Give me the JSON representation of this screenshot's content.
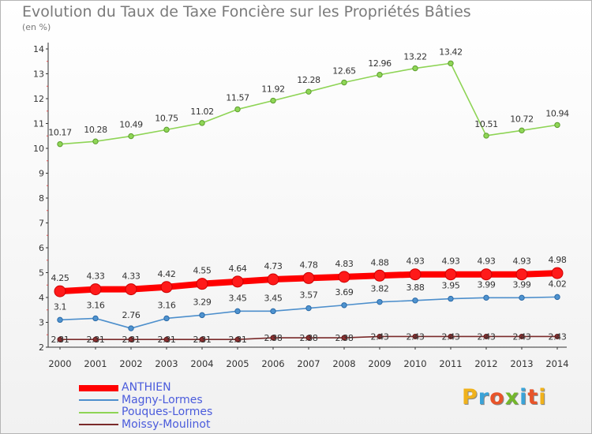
{
  "title": "Evolution du Taux de Taxe Foncière sur les Propriétés Bâties",
  "subtitle": "(en %)",
  "brand": {
    "letters": [
      "P",
      "r",
      "o",
      "x",
      "i",
      "t",
      "i"
    ],
    "colors": [
      "#f0b21c",
      "#3aa3d8",
      "#e8542a",
      "#73b72b",
      "#3aa3d8",
      "#e8542a",
      "#f0b21c"
    ]
  },
  "chart_data": {
    "type": "line",
    "title": "Evolution du Taux de Taxe Foncière sur les Propriétés Bâties",
    "ylabel": "(en %)",
    "xlabel": "",
    "x": [
      "2000",
      "2001",
      "2002",
      "2003",
      "2004",
      "2005",
      "2006",
      "2007",
      "2008",
      "2009",
      "2010",
      "2011",
      "2012",
      "2013",
      "2014"
    ],
    "ylim": [
      2,
      14
    ],
    "yticks": [
      "2",
      "3",
      "4",
      "5",
      "6",
      "7",
      "8",
      "9",
      "10",
      "11",
      "12",
      "13",
      "14"
    ],
    "grid": false,
    "legend_position": "bottom-left",
    "series": [
      {
        "name": "ANTHIEN",
        "color": "#ff0000",
        "values": [
          4.25,
          4.33,
          4.33,
          4.42,
          4.55,
          4.64,
          4.73,
          4.78,
          4.83,
          4.88,
          4.93,
          4.93,
          4.93,
          4.93,
          4.98
        ],
        "labels": [
          "4.25",
          "4.33",
          "4.33",
          "4.42",
          "4.55",
          "4.64",
          "4.73",
          "4.78",
          "4.83",
          "4.88",
          "4.93",
          "4.93",
          "4.93",
          "4.93",
          "4.98"
        ]
      },
      {
        "name": "Magny-Lormes",
        "color": "#4d8fcc",
        "values": [
          3.1,
          3.16,
          2.76,
          3.16,
          3.29,
          3.45,
          3.45,
          3.57,
          3.69,
          3.82,
          3.88,
          3.95,
          3.99,
          3.99,
          4.02
        ],
        "labels": [
          "3.1",
          "3.16",
          "2.76",
          "3.16",
          "3.29",
          "3.45",
          "3.45",
          "3.57",
          "3.69",
          "3.82",
          "3.88",
          "3.95",
          "3.99",
          "3.99",
          "4.02"
        ]
      },
      {
        "name": "Pouques-Lormes",
        "color": "#8ed455",
        "values": [
          10.17,
          10.28,
          10.49,
          10.75,
          11.02,
          11.57,
          11.92,
          12.28,
          12.65,
          12.96,
          13.22,
          13.42,
          10.51,
          10.72,
          10.94
        ],
        "labels": [
          "10.17",
          "10.28",
          "10.49",
          "10.75",
          "11.02",
          "11.57",
          "11.92",
          "12.28",
          "12.65",
          "12.96",
          "13.22",
          "13.42",
          "10.51",
          "10.72",
          "10.94"
        ]
      },
      {
        "name": "Moissy-Moulinot",
        "color": "#7a2a2a",
        "values": [
          2.31,
          2.31,
          2.31,
          2.31,
          2.31,
          2.31,
          2.38,
          2.38,
          2.38,
          2.43,
          2.43,
          2.43,
          2.43,
          2.43,
          2.43
        ],
        "labels": [
          "2.31",
          "2.31",
          "2.31",
          "2.31",
          "2.31",
          "2.31",
          "2.38",
          "2.38",
          "2.38",
          "2.43",
          "2.43",
          "2.43",
          "2.43",
          "2.43",
          "2.43"
        ]
      }
    ]
  }
}
